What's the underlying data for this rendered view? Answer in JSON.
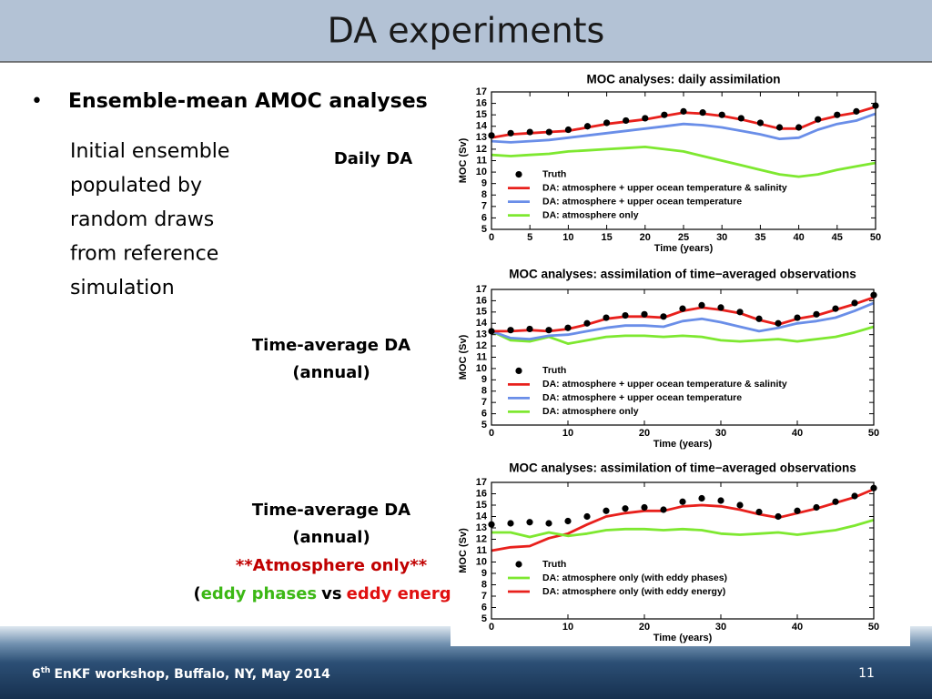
{
  "slide": {
    "title": "DA experiments",
    "bullet": "Ensemble-mean AMOC analyses",
    "note": [
      "Initial ensemble",
      "populated by",
      "random draws",
      "from reference",
      "simulation"
    ],
    "label1": "Daily DA",
    "label2": [
      "Time-average DA",
      "(annual)"
    ],
    "label3": {
      "line1": "Time-average DA",
      "line2": "(annual)",
      "line3": "**Atmosphere only**",
      "open": "(",
      "a": "eddy phases",
      "vs": "vs",
      "b": "eddy energy",
      "close": ")"
    },
    "footer": {
      "num": "6",
      "sup": "th",
      "rest": "EnKF workshop, Buffalo, NY, May 2014"
    },
    "page": "11"
  },
  "chart_data": [
    {
      "type": "line",
      "title": "MOC analyses: daily assimilation",
      "x_label": "Time (years)",
      "y_label": "MOC (Sv)",
      "x": [
        0,
        2.5,
        5,
        7.5,
        10,
        12.5,
        15,
        17.5,
        20,
        22.5,
        25,
        27.5,
        30,
        32.5,
        35,
        37.5,
        40,
        42.5,
        45,
        47.5,
        50
      ],
      "xlim": [
        0,
        50
      ],
      "xticks": [
        0,
        5,
        10,
        15,
        20,
        25,
        30,
        35,
        40,
        45,
        50
      ],
      "ylim": [
        5,
        17
      ],
      "yticks": [
        5,
        6,
        7,
        8,
        9,
        10,
        11,
        12,
        13,
        14,
        15,
        16,
        17
      ],
      "series": [
        {
          "name": "Truth",
          "color": "#000000",
          "style": "markers",
          "values": [
            13.2,
            13.4,
            13.5,
            13.5,
            13.7,
            14.0,
            14.3,
            14.5,
            14.7,
            15.0,
            15.3,
            15.2,
            15.0,
            14.7,
            14.3,
            13.9,
            13.9,
            14.6,
            15.0,
            15.3,
            15.8
          ]
        },
        {
          "name": "DA: atmosphere + upper ocean temperature & salinity",
          "color": "#e8201c",
          "style": "line",
          "values": [
            13.0,
            13.3,
            13.4,
            13.5,
            13.6,
            13.9,
            14.2,
            14.4,
            14.6,
            14.9,
            15.2,
            15.1,
            14.9,
            14.6,
            14.2,
            13.8,
            13.8,
            14.5,
            14.9,
            15.2,
            15.7
          ]
        },
        {
          "name": "DA: atmosphere + upper ocean temperature",
          "color": "#6a8ee8",
          "style": "line",
          "values": [
            12.7,
            12.6,
            12.7,
            12.8,
            13.0,
            13.2,
            13.4,
            13.6,
            13.8,
            14.0,
            14.2,
            14.1,
            13.9,
            13.6,
            13.3,
            12.9,
            13.0,
            13.7,
            14.2,
            14.5,
            15.1
          ]
        },
        {
          "name": "DA: atmosphere only",
          "color": "#7ee830",
          "style": "line",
          "values": [
            11.5,
            11.4,
            11.5,
            11.6,
            11.8,
            11.9,
            12.0,
            12.1,
            12.2,
            12.0,
            11.8,
            11.4,
            11.0,
            10.6,
            10.2,
            9.8,
            9.6,
            9.8,
            10.2,
            10.5,
            10.8
          ]
        }
      ]
    },
    {
      "type": "line",
      "title": "MOC analyses: assimilation of time−averaged observations",
      "x_label": "Time (years)",
      "y_label": "MOC (Sv)",
      "x": [
        0,
        2.5,
        5,
        7.5,
        10,
        12.5,
        15,
        17.5,
        20,
        22.5,
        25,
        27.5,
        30,
        32.5,
        35,
        37.5,
        40,
        42.5,
        45,
        47.5,
        50
      ],
      "xlim": [
        0,
        50
      ],
      "xticks": [
        0,
        10,
        20,
        30,
        40,
        50
      ],
      "ylim": [
        5,
        17
      ],
      "yticks": [
        5,
        6,
        7,
        8,
        9,
        10,
        11,
        12,
        13,
        14,
        15,
        16,
        17
      ],
      "series": [
        {
          "name": "Truth",
          "color": "#000000",
          "style": "markers",
          "values": [
            13.3,
            13.4,
            13.5,
            13.4,
            13.6,
            14.0,
            14.5,
            14.7,
            14.8,
            14.6,
            15.3,
            15.6,
            15.4,
            15.0,
            14.4,
            14.0,
            14.5,
            14.8,
            15.3,
            15.8,
            16.5
          ]
        },
        {
          "name": "DA: atmosphere + upper ocean temperature & salinity",
          "color": "#e8201c",
          "style": "line",
          "values": [
            13.3,
            13.3,
            13.4,
            13.3,
            13.5,
            13.9,
            14.4,
            14.6,
            14.6,
            14.5,
            15.1,
            15.4,
            15.2,
            14.9,
            14.3,
            13.9,
            14.4,
            14.7,
            15.2,
            15.7,
            16.3
          ]
        },
        {
          "name": "DA: atmosphere + upper ocean temperature",
          "color": "#6a8ee8",
          "style": "line",
          "values": [
            13.3,
            12.7,
            12.6,
            12.9,
            13.0,
            13.3,
            13.6,
            13.8,
            13.8,
            13.7,
            14.2,
            14.4,
            14.1,
            13.7,
            13.3,
            13.6,
            14.0,
            14.2,
            14.5,
            15.1,
            15.8
          ]
        },
        {
          "name": "DA: atmosphere only",
          "color": "#7ee830",
          "style": "line",
          "values": [
            13.3,
            12.5,
            12.4,
            12.8,
            12.2,
            12.5,
            12.8,
            12.9,
            12.9,
            12.8,
            12.9,
            12.8,
            12.5,
            12.4,
            12.5,
            12.6,
            12.4,
            12.6,
            12.8,
            13.2,
            13.7
          ]
        }
      ]
    },
    {
      "type": "line",
      "title": "MOC analyses: assimilation of time−averaged observations",
      "x_label": "Time (years)",
      "y_label": "MOC (Sv)",
      "x": [
        0,
        2.5,
        5,
        7.5,
        10,
        12.5,
        15,
        17.5,
        20,
        22.5,
        25,
        27.5,
        30,
        32.5,
        35,
        37.5,
        40,
        42.5,
        45,
        47.5,
        50
      ],
      "xlim": [
        0,
        50
      ],
      "xticks": [
        0,
        10,
        20,
        30,
        40,
        50
      ],
      "ylim": [
        5,
        17
      ],
      "yticks": [
        5,
        6,
        7,
        8,
        9,
        10,
        11,
        12,
        13,
        14,
        15,
        16,
        17
      ],
      "series": [
        {
          "name": "Truth",
          "color": "#000000",
          "style": "markers",
          "values": [
            13.3,
            13.4,
            13.5,
            13.4,
            13.6,
            14.0,
            14.5,
            14.7,
            14.8,
            14.6,
            15.3,
            15.6,
            15.4,
            15.0,
            14.4,
            14.0,
            14.5,
            14.8,
            15.3,
            15.8,
            16.5
          ]
        },
        {
          "name": "DA: atmosphere only (with eddy phases)",
          "color": "#7ee830",
          "style": "line",
          "values": [
            12.6,
            12.6,
            12.2,
            12.6,
            12.3,
            12.5,
            12.8,
            12.9,
            12.9,
            12.8,
            12.9,
            12.8,
            12.5,
            12.4,
            12.5,
            12.6,
            12.4,
            12.6,
            12.8,
            13.2,
            13.7
          ]
        },
        {
          "name": "DA: atmosphere only (with eddy energy)",
          "color": "#e8201c",
          "style": "line",
          "values": [
            11.0,
            11.3,
            11.4,
            12.1,
            12.5,
            13.3,
            14.0,
            14.3,
            14.5,
            14.5,
            14.9,
            15.0,
            14.9,
            14.6,
            14.2,
            13.9,
            14.3,
            14.7,
            15.2,
            15.7,
            16.4
          ]
        }
      ]
    }
  ]
}
